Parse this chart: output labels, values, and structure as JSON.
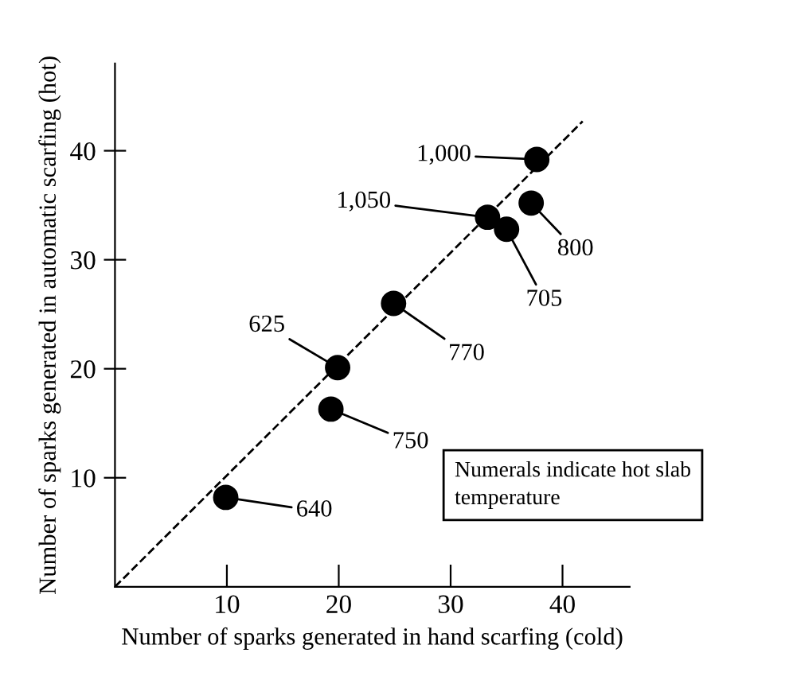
{
  "chart_data": {
    "type": "scatter",
    "xlabel": "Number of sparks generated in hand scarfing (cold)",
    "ylabel": "Number of sparks generated in automatic scarfing (hot)",
    "xlim": [
      0,
      46
    ],
    "ylim": [
      0,
      48
    ],
    "xticks": [
      10,
      20,
      30,
      40
    ],
    "yticks": [
      10,
      20,
      30,
      40
    ],
    "grid": false,
    "series": [
      {
        "color": "#000000",
        "marker": "circle",
        "x": [
          9.9,
          19.3,
          19.9,
          24.9,
          33.3,
          35.0,
          37.2,
          37.7
        ],
        "values": [
          8.2,
          16.3,
          20.1,
          26.0,
          33.9,
          32.8,
          35.2,
          39.2
        ]
      },
      {
        "type": "line",
        "color": "#000000",
        "line_style": "dashed",
        "marker": "none",
        "x": [
          0,
          41.8
        ],
        "values": [
          0,
          42.7
        ]
      }
    ],
    "annotations": [
      {
        "text": "640",
        "x": 9.9,
        "y": 8.2
      },
      {
        "text": "750",
        "x": 19.3,
        "y": 16.3
      },
      {
        "text": "625",
        "x": 19.9,
        "y": 20.1
      },
      {
        "text": "770",
        "x": 24.9,
        "y": 26.0
      },
      {
        "text": "1,050",
        "x": 33.3,
        "y": 33.9
      },
      {
        "text": "705",
        "x": 35.0,
        "y": 32.8
      },
      {
        "text": "800",
        "x": 37.2,
        "y": 35.2
      },
      {
        "text": "1,000",
        "x": 37.7,
        "y": 39.2
      },
      "Numerals indicate hot slab temperature"
    ]
  }
}
